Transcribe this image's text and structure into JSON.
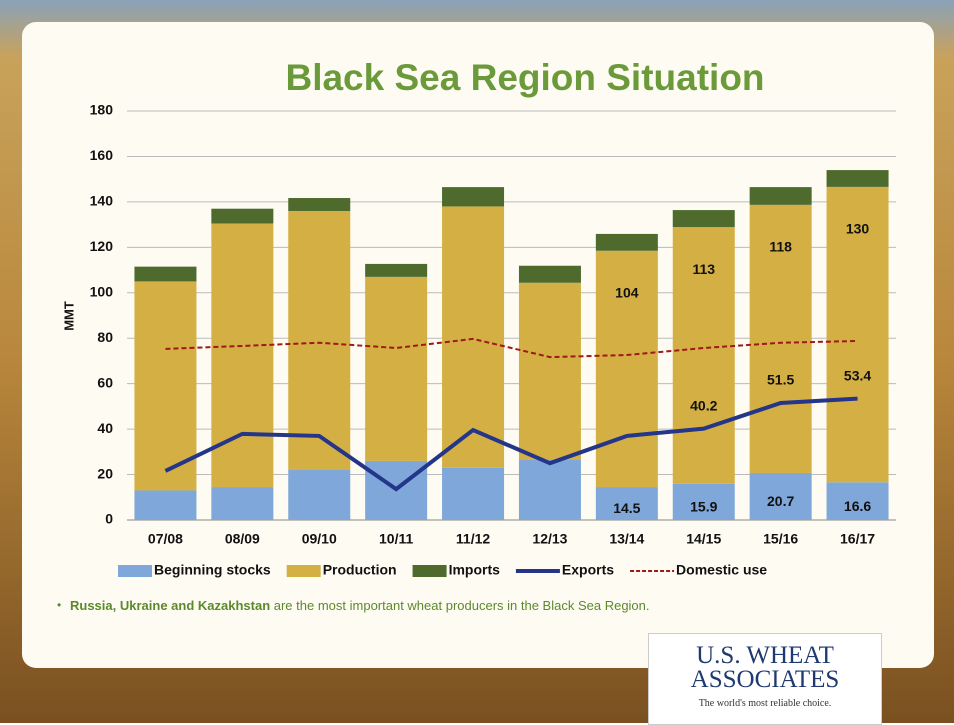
{
  "chart_data": {
    "type": "bar",
    "title": "Black Sea Region Situation",
    "y_label": "MMT",
    "categories": [
      "07/08",
      "08/09",
      "09/10",
      "10/11",
      "11/12",
      "12/13",
      "13/14",
      "14/15",
      "15/16",
      "16/17"
    ],
    "ylim": [
      0,
      180
    ],
    "yticks": [
      0,
      20,
      40,
      60,
      80,
      100,
      120,
      140,
      160,
      180
    ],
    "grid": true,
    "legend": "bottom",
    "series": [
      {
        "name": "Beginning stocks",
        "type": "bar",
        "color": "#7fa7d9",
        "values": [
          13,
          14.5,
          22,
          26,
          23,
          26.4,
          14.5,
          15.9,
          20.7,
          16.6
        ],
        "value_labels": [
          null,
          null,
          null,
          null,
          null,
          null,
          "14.5",
          "15.9",
          "20.7",
          "16.6"
        ]
      },
      {
        "name": "Production",
        "type": "bar",
        "color": "#d4b044",
        "values": [
          92,
          116,
          114,
          81,
          115,
          78,
          104,
          113,
          118,
          130
        ],
        "value_labels": [
          null,
          null,
          null,
          null,
          null,
          null,
          "104",
          "113",
          "118",
          "130"
        ]
      },
      {
        "name": "Imports",
        "type": "bar",
        "color": "#4e6b2d",
        "values": [
          6.5,
          6.5,
          5.7,
          5.7,
          8.5,
          7.5,
          7.4,
          7.5,
          7.8,
          7.4
        ]
      },
      {
        "name": "Exports",
        "type": "line",
        "color": "#24358a",
        "values": [
          21.6,
          37.9,
          37,
          13.6,
          39.6,
          25,
          37,
          40.2,
          51.5,
          53.4
        ],
        "value_labels": [
          null,
          null,
          null,
          null,
          null,
          null,
          null,
          "40.2",
          "51.5",
          "53.4"
        ]
      },
      {
        "name": "Domestic use",
        "type": "line",
        "dashed": true,
        "color": "#a0191a",
        "values": [
          75.3,
          76.6,
          78,
          75.7,
          79.7,
          71.7,
          72.6,
          75.7,
          78,
          78.8
        ]
      }
    ]
  },
  "bullet": {
    "bold": "Russia, Ukraine and Kazakhstan",
    "text": " are the most important wheat producers in the Black Sea Region."
  },
  "logo": {
    "line1": "U.S. WHEAT",
    "line2": "ASSOCIATES",
    "tagline": "The world's most reliable choice."
  }
}
